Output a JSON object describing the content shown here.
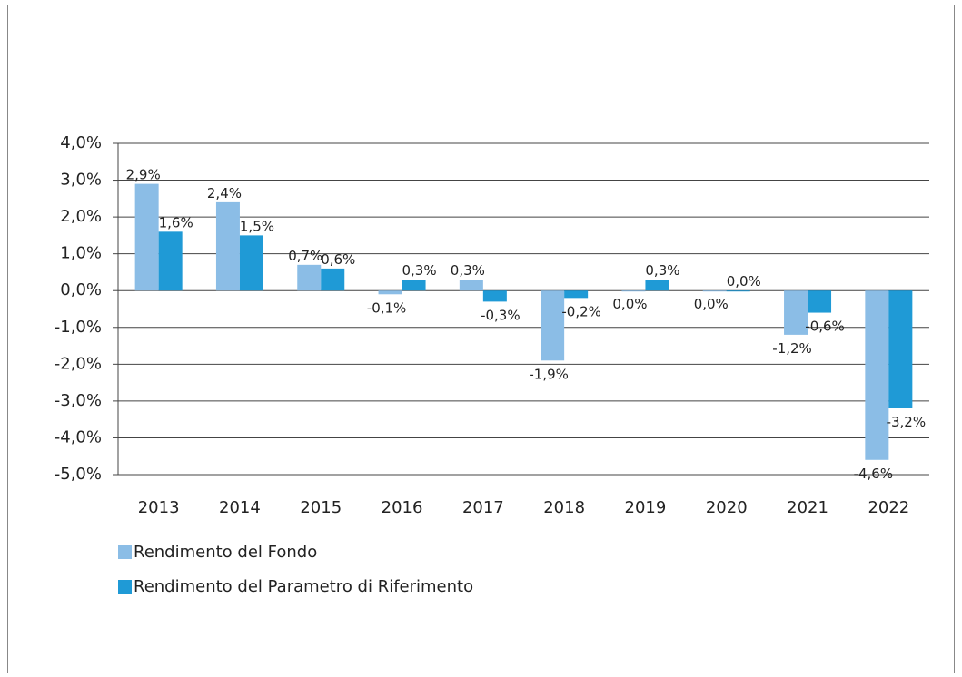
{
  "chart_data": {
    "type": "bar",
    "categories": [
      "2013",
      "2014",
      "2015",
      "2016",
      "2017",
      "2018",
      "2019",
      "2020",
      "2021",
      "2022"
    ],
    "series": [
      {
        "name": "Rendimento del Fondo",
        "color": "#8bbde6",
        "values": [
          2.9,
          2.4,
          0.7,
          -0.1,
          0.3,
          -1.9,
          0.0,
          0.0,
          -1.2,
          -4.6
        ],
        "value_labels": [
          "2,9%",
          "2,4%",
          "0,7%",
          "-0,1%",
          "0,3%",
          "-1,9%",
          "0,0%",
          "0,0%",
          "-1,2%",
          "-4,6%"
        ]
      },
      {
        "name": "Rendimento del Parametro di Riferimento",
        "color": "#1f9ad6",
        "values": [
          1.6,
          1.5,
          0.6,
          0.3,
          -0.3,
          -0.2,
          0.3,
          0.0,
          -0.6,
          -3.2
        ],
        "value_labels": [
          "1,6%",
          "1,5%",
          "0,6%",
          "0,3%",
          "-0,3%",
          "-0,2%",
          "0,3%",
          "0,0%",
          "-0,6%",
          "-3,2%"
        ]
      }
    ],
    "ylim": [
      -5,
      4
    ],
    "yticks": [
      {
        "value": 4,
        "label": "4,0%"
      },
      {
        "value": 3,
        "label": "3,0%"
      },
      {
        "value": 2,
        "label": "2,0%"
      },
      {
        "value": 1,
        "label": "1,0%"
      },
      {
        "value": 0,
        "label": "0,0%"
      },
      {
        "value": -1,
        "label": "-1,0%"
      },
      {
        "value": -2,
        "label": "-2,0%"
      },
      {
        "value": -3,
        "label": "-3,0%"
      },
      {
        "value": -4,
        "label": "-4,0%"
      },
      {
        "value": -5,
        "label": "-5,0%"
      }
    ],
    "grid": true
  }
}
